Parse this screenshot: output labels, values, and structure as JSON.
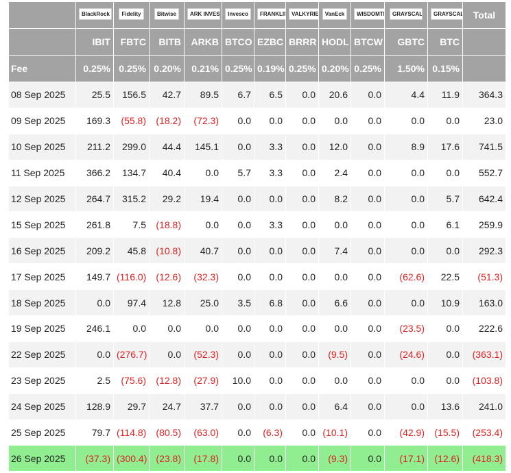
{
  "header": {
    "logos": [
      "BlackRock",
      "Fidelity",
      "Bitwise",
      "ARK INVEST",
      "Invesco",
      "FRANKLIN TEMPLETON",
      "VALKYRIE",
      "VanEck",
      "WISDOMTREE",
      "GRAYSCALE",
      "GRAYSCALE"
    ],
    "total": "Total",
    "tickers": [
      "IBIT",
      "FBTC",
      "BITB",
      "ARKB",
      "BTCO",
      "EZBC",
      "BRRR",
      "HODL",
      "BTCW",
      "GBTC",
      "BTC"
    ],
    "fee_label": "Fee",
    "fees": [
      "0.25%",
      "0.25%",
      "0.20%",
      "0.21%",
      "0.25%",
      "0.19%",
      "0.25%",
      "0.20%",
      "0.25%",
      "1.50%",
      "0.15%"
    ]
  },
  "rows": [
    {
      "date": "08 Sep 2025",
      "cells": [
        "25.5",
        "156.5",
        "42.7",
        "89.5",
        "6.7",
        "6.5",
        "0.0",
        "20.6",
        "0.0",
        "4.4",
        "11.9",
        "364.3"
      ]
    },
    {
      "date": "09 Sep 2025",
      "cells": [
        "169.3",
        "(55.8)",
        "(18.2)",
        "(72.3)",
        "0.0",
        "0.0",
        "0.0",
        "0.0",
        "0.0",
        "0.0",
        "0.0",
        "23.0"
      ]
    },
    {
      "date": "10 Sep 2025",
      "cells": [
        "211.2",
        "299.0",
        "44.4",
        "145.1",
        "0.0",
        "3.3",
        "0.0",
        "12.0",
        "0.0",
        "8.9",
        "17.6",
        "741.5"
      ]
    },
    {
      "date": "11 Sep 2025",
      "cells": [
        "366.2",
        "134.7",
        "40.4",
        "0.0",
        "5.7",
        "3.3",
        "0.0",
        "2.4",
        "0.0",
        "0.0",
        "0.0",
        "552.7"
      ]
    },
    {
      "date": "12 Sep 2025",
      "cells": [
        "264.7",
        "315.2",
        "29.2",
        "19.4",
        "0.0",
        "0.0",
        "0.0",
        "8.2",
        "0.0",
        "0.0",
        "5.7",
        "642.4"
      ]
    },
    {
      "date": "15 Sep 2025",
      "cells": [
        "261.8",
        "7.5",
        "(18.8)",
        "0.0",
        "0.0",
        "3.3",
        "0.0",
        "0.0",
        "0.0",
        "0.0",
        "6.1",
        "259.9"
      ]
    },
    {
      "date": "16 Sep 2025",
      "cells": [
        "209.2",
        "45.8",
        "(10.8)",
        "40.7",
        "0.0",
        "0.0",
        "0.0",
        "7.4",
        "0.0",
        "0.0",
        "0.0",
        "292.3"
      ]
    },
    {
      "date": "17 Sep 2025",
      "cells": [
        "149.7",
        "(116.0)",
        "(12.6)",
        "(32.3)",
        "0.0",
        "0.0",
        "0.0",
        "0.0",
        "0.0",
        "(62.6)",
        "22.5",
        "(51.3)"
      ]
    },
    {
      "date": "18 Sep 2025",
      "cells": [
        "0.0",
        "97.4",
        "12.8",
        "25.0",
        "3.5",
        "6.8",
        "0.0",
        "6.6",
        "0.0",
        "0.0",
        "10.9",
        "163.0"
      ]
    },
    {
      "date": "19 Sep 2025",
      "cells": [
        "246.1",
        "0.0",
        "0.0",
        "0.0",
        "0.0",
        "0.0",
        "0.0",
        "0.0",
        "0.0",
        "(23.5)",
        "0.0",
        "222.6"
      ]
    },
    {
      "date": "22 Sep 2025",
      "cells": [
        "0.0",
        "(276.7)",
        "0.0",
        "(52.3)",
        "0.0",
        "0.0",
        "0.0",
        "(9.5)",
        "0.0",
        "(24.6)",
        "0.0",
        "(363.1)"
      ]
    },
    {
      "date": "23 Sep 2025",
      "cells": [
        "2.5",
        "(75.6)",
        "(12.8)",
        "(27.9)",
        "10.0",
        "0.0",
        "0.0",
        "0.0",
        "0.0",
        "0.0",
        "0.0",
        "(103.8)"
      ]
    },
    {
      "date": "24 Sep 2025",
      "cells": [
        "128.9",
        "29.7",
        "24.7",
        "37.7",
        "0.0",
        "0.0",
        "0.0",
        "6.4",
        "0.0",
        "0.0",
        "13.6",
        "241.0"
      ]
    },
    {
      "date": "25 Sep 2025",
      "cells": [
        "79.7",
        "(114.8)",
        "(80.5)",
        "(63.0)",
        "0.0",
        "(6.3)",
        "0.0",
        "(10.1)",
        "0.0",
        "(42.9)",
        "(15.5)",
        "(253.4)"
      ]
    },
    {
      "date": "26 Sep 2025",
      "cells": [
        "(37.3)",
        "(300.4)",
        "(23.8)",
        "(17.8)",
        "0.0",
        "0.0",
        "0.0",
        "(9.3)",
        "0.0",
        "(17.1)",
        "(12.6)",
        "(418.3)"
      ]
    }
  ]
}
